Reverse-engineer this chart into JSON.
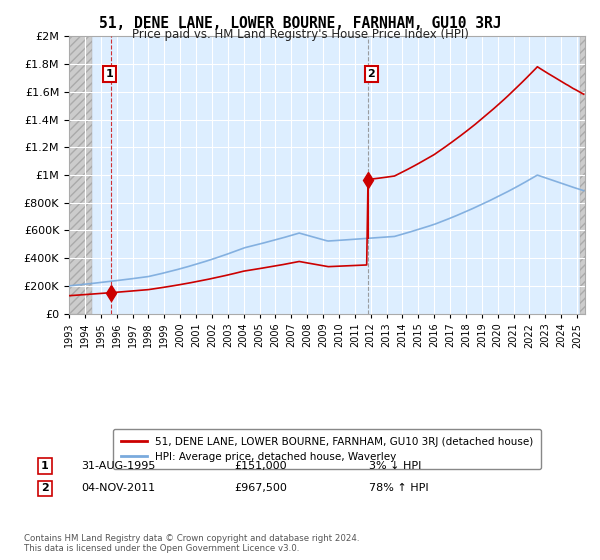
{
  "title": "51, DENE LANE, LOWER BOURNE, FARNHAM, GU10 3RJ",
  "subtitle": "Price paid vs. HM Land Registry's House Price Index (HPI)",
  "legend_line1": "51, DENE LANE, LOWER BOURNE, FARNHAM, GU10 3RJ (detached house)",
  "legend_line2": "HPI: Average price, detached house, Waverley",
  "annotation1_date": "31-AUG-1995",
  "annotation1_price": "£151,000",
  "annotation1_rel": "3% ↓ HPI",
  "annotation2_date": "04-NOV-2011",
  "annotation2_price": "£967,500",
  "annotation2_rel": "78% ↑ HPI",
  "footnote": "Contains HM Land Registry data © Crown copyright and database right 2024.\nThis data is licensed under the Open Government Licence v3.0.",
  "sale1_year": 1995.67,
  "sale1_price": 151000,
  "sale2_year": 2011.84,
  "sale2_price": 967500,
  "red_color": "#cc0000",
  "blue_color": "#7aaadd",
  "background_color": "#ddeeff",
  "ylim_min": 0,
  "ylim_max": 2000000,
  "xlim_min": 1993,
  "xlim_max": 2025.5
}
